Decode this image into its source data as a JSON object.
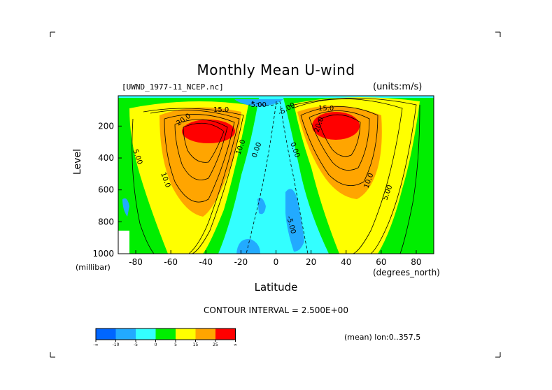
{
  "chart_data": {
    "type": "contour",
    "title": "Monthly Mean U-wind",
    "dataset": "[UWND_1977-11_NCEP.nc]",
    "units_label": "(units:m/s)",
    "ylabel": "Level",
    "yunits": "(millibar)",
    "xlabel": "Latitude",
    "xunits": "(degrees_north)",
    "xlim": [
      -90,
      90
    ],
    "ylim": [
      1000,
      10
    ],
    "x_ticks": [
      "-80",
      "-60",
      "-40",
      "-20",
      "0",
      "20",
      "40",
      "60",
      "80"
    ],
    "y_ticks": [
      "200",
      "400",
      "600",
      "800",
      "1000"
    ],
    "contour_interval": "CONTOUR INTERVAL = 2.500E+00",
    "contour_labels": [
      "20.0",
      "15.0",
      "5.00",
      "10.0",
      "10.0",
      "0.00",
      "-5.00",
      "15.0",
      "20.0",
      "10.0",
      "5.00",
      "0.00",
      "-5.00",
      "-5.00"
    ],
    "jets": [
      {
        "lat": -38,
        "level": 240,
        "max_speed_approx": 27
      },
      {
        "lat": 35,
        "level": 200,
        "max_speed_approx": 27
      }
    ],
    "colorbar": {
      "colors": [
        "#0066ff",
        "#22aaff",
        "#33ffff",
        "#00ee00",
        "#ffff00",
        "#ffa500",
        "#ff0000"
      ],
      "labels": [
        "-∞",
        "-10",
        "-5",
        "0",
        "5",
        "15",
        "25",
        "∞"
      ]
    },
    "footer_note": "(mean) lon:0..357.5"
  }
}
